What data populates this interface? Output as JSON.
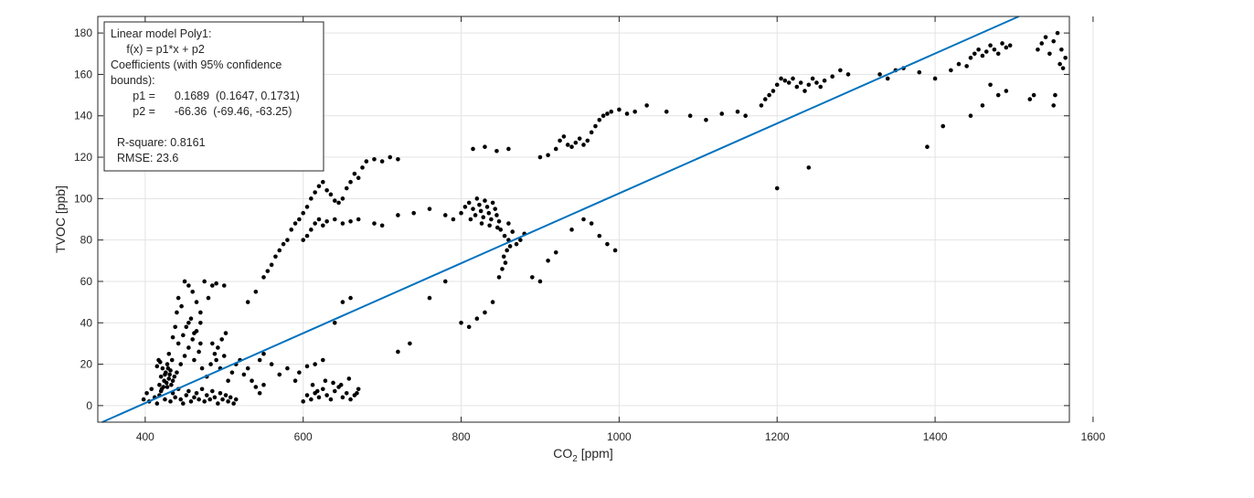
{
  "chart_data": {
    "type": "scatter",
    "xlabel_main": "CO",
    "xlabel_sub": "2",
    "xlabel_unit": " [ppm]",
    "ylabel": "TVOC [ppb]",
    "xlim": [
      340,
      1570
    ],
    "ylim": [
      -8,
      188
    ],
    "xticks": [
      400,
      600,
      800,
      1000,
      1200,
      1400,
      1600
    ],
    "yticks": [
      0,
      20,
      40,
      60,
      80,
      100,
      120,
      140,
      160,
      180
    ],
    "grid": true,
    "fit_line": {
      "slope": 0.1689,
      "intercept": -66.36,
      "color": "#0072BD"
    },
    "marker_color": "#000000",
    "annotation": {
      "lines": [
        "Linear model Poly1:",
        "     f(x) = p1*x + p2",
        "Coefficients (with 95% confidence",
        "bounds):",
        "       p1 =      0.1689  (0.1647, 0.1731)",
        "       p2 =      -66.36  (-69.46, -63.25)",
        "",
        "  R-square: 0.8161",
        "  RMSE: 23.6"
      ]
    },
    "points": [
      [
        398,
        3
      ],
      [
        402,
        6
      ],
      [
        405,
        2
      ],
      [
        408,
        8
      ],
      [
        412,
        4
      ],
      [
        415,
        1
      ],
      [
        418,
        5
      ],
      [
        420,
        7
      ],
      [
        425,
        3
      ],
      [
        428,
        9
      ],
      [
        432,
        2
      ],
      [
        435,
        6
      ],
      [
        438,
        4
      ],
      [
        442,
        8
      ],
      [
        445,
        3
      ],
      [
        448,
        1
      ],
      [
        452,
        5
      ],
      [
        455,
        7
      ],
      [
        458,
        2
      ],
      [
        462,
        4
      ],
      [
        465,
        6
      ],
      [
        468,
        3
      ],
      [
        472,
        8
      ],
      [
        475,
        2
      ],
      [
        478,
        5
      ],
      [
        482,
        3
      ],
      [
        485,
        7
      ],
      [
        488,
        4
      ],
      [
        492,
        1
      ],
      [
        495,
        6
      ],
      [
        498,
        3
      ],
      [
        502,
        5
      ],
      [
        505,
        2
      ],
      [
        508,
        4
      ],
      [
        512,
        1
      ],
      [
        515,
        3
      ],
      [
        418,
        10
      ],
      [
        420,
        14
      ],
      [
        422,
        18
      ],
      [
        424,
        12
      ],
      [
        426,
        16
      ],
      [
        428,
        20
      ],
      [
        430,
        13
      ],
      [
        432,
        17
      ],
      [
        419,
        21
      ],
      [
        423,
        9
      ],
      [
        427,
        11
      ],
      [
        431,
        15
      ],
      [
        415,
        19
      ],
      [
        417,
        22
      ],
      [
        421,
        8
      ],
      [
        425,
        15
      ],
      [
        429,
        18
      ],
      [
        433,
        10
      ],
      [
        435,
        12
      ],
      [
        437,
        14
      ],
      [
        440,
        16
      ],
      [
        445,
        20
      ],
      [
        450,
        24
      ],
      [
        455,
        28
      ],
      [
        460,
        32
      ],
      [
        465,
        36
      ],
      [
        470,
        40
      ],
      [
        442,
        30
      ],
      [
        448,
        34
      ],
      [
        452,
        38
      ],
      [
        458,
        42
      ],
      [
        462,
        22
      ],
      [
        468,
        26
      ],
      [
        472,
        18
      ],
      [
        478,
        14
      ],
      [
        483,
        20
      ],
      [
        488,
        25
      ],
      [
        492,
        28
      ],
      [
        497,
        32
      ],
      [
        502,
        35
      ],
      [
        485,
        30
      ],
      [
        490,
        22
      ],
      [
        495,
        18
      ],
      [
        500,
        24
      ],
      [
        505,
        12
      ],
      [
        510,
        16
      ],
      [
        515,
        20
      ],
      [
        520,
        22
      ],
      [
        525,
        15
      ],
      [
        530,
        18
      ],
      [
        535,
        12
      ],
      [
        540,
        9
      ],
      [
        545,
        6
      ],
      [
        550,
        10
      ],
      [
        450,
        60
      ],
      [
        455,
        58
      ],
      [
        460,
        55
      ],
      [
        465,
        50
      ],
      [
        470,
        45
      ],
      [
        475,
        60
      ],
      [
        480,
        52
      ],
      [
        485,
        58
      ],
      [
        490,
        59
      ],
      [
        500,
        58
      ],
      [
        435,
        33
      ],
      [
        438,
        38
      ],
      [
        440,
        45
      ],
      [
        442,
        52
      ],
      [
        446,
        48
      ],
      [
        430,
        25
      ],
      [
        434,
        22
      ],
      [
        455,
        40
      ],
      [
        462,
        35
      ],
      [
        470,
        30
      ],
      [
        530,
        50
      ],
      [
        540,
        55
      ],
      [
        550,
        62
      ],
      [
        555,
        65
      ],
      [
        560,
        68
      ],
      [
        565,
        72
      ],
      [
        570,
        75
      ],
      [
        575,
        78
      ],
      [
        580,
        80
      ],
      [
        585,
        85
      ],
      [
        590,
        88
      ],
      [
        595,
        90
      ],
      [
        600,
        93
      ],
      [
        605,
        96
      ],
      [
        610,
        100
      ],
      [
        615,
        103
      ],
      [
        620,
        106
      ],
      [
        625,
        108
      ],
      [
        630,
        104
      ],
      [
        635,
        102
      ],
      [
        640,
        99
      ],
      [
        645,
        98
      ],
      [
        650,
        100
      ],
      [
        655,
        105
      ],
      [
        660,
        108
      ],
      [
        665,
        112
      ],
      [
        670,
        110
      ],
      [
        675,
        115
      ],
      [
        680,
        118
      ],
      [
        690,
        119
      ],
      [
        700,
        118
      ],
      [
        710,
        120
      ],
      [
        720,
        119
      ],
      [
        600,
        80
      ],
      [
        605,
        82
      ],
      [
        610,
        85
      ],
      [
        615,
        88
      ],
      [
        620,
        90
      ],
      [
        625,
        87
      ],
      [
        630,
        89
      ],
      [
        640,
        90
      ],
      [
        650,
        88
      ],
      [
        660,
        89
      ],
      [
        670,
        90
      ],
      [
        690,
        88
      ],
      [
        700,
        87
      ],
      [
        600,
        2
      ],
      [
        605,
        5
      ],
      [
        610,
        3
      ],
      [
        615,
        6
      ],
      [
        620,
        4
      ],
      [
        625,
        8
      ],
      [
        630,
        5
      ],
      [
        635,
        3
      ],
      [
        640,
        7
      ],
      [
        645,
        9
      ],
      [
        650,
        4
      ],
      [
        655,
        6
      ],
      [
        660,
        3
      ],
      [
        665,
        5
      ],
      [
        670,
        8
      ],
      [
        612,
        10
      ],
      [
        618,
        7
      ],
      [
        628,
        12
      ],
      [
        638,
        11
      ],
      [
        648,
        10
      ],
      [
        658,
        13
      ],
      [
        668,
        6
      ],
      [
        560,
        20
      ],
      [
        570,
        15
      ],
      [
        580,
        18
      ],
      [
        590,
        12
      ],
      [
        595,
        16
      ],
      [
        605,
        19
      ],
      [
        615,
        20
      ],
      [
        625,
        22
      ],
      [
        640,
        40
      ],
      [
        650,
        50
      ],
      [
        660,
        52
      ],
      [
        550,
        25
      ],
      [
        545,
        22
      ],
      [
        720,
        26
      ],
      [
        735,
        30
      ],
      [
        760,
        52
      ],
      [
        780,
        60
      ],
      [
        800,
        40
      ],
      [
        810,
        38
      ],
      [
        820,
        42
      ],
      [
        830,
        45
      ],
      [
        840,
        50
      ],
      [
        720,
        92
      ],
      [
        740,
        93
      ],
      [
        760,
        95
      ],
      [
        780,
        92
      ],
      [
        790,
        90
      ],
      [
        800,
        93
      ],
      [
        805,
        96
      ],
      [
        810,
        98
      ],
      [
        815,
        95
      ],
      [
        818,
        92
      ],
      [
        820,
        100
      ],
      [
        823,
        97
      ],
      [
        825,
        94
      ],
      [
        828,
        91
      ],
      [
        830,
        99
      ],
      [
        833,
        96
      ],
      [
        835,
        93
      ],
      [
        838,
        90
      ],
      [
        840,
        98
      ],
      [
        843,
        95
      ],
      [
        845,
        92
      ],
      [
        848,
        89
      ],
      [
        812,
        90
      ],
      [
        826,
        88
      ],
      [
        836,
        87
      ],
      [
        846,
        86
      ],
      [
        850,
        85
      ],
      [
        855,
        82
      ],
      [
        860,
        80
      ],
      [
        862,
        77
      ],
      [
        858,
        75
      ],
      [
        854,
        72
      ],
      [
        856,
        69
      ],
      [
        852,
        66
      ],
      [
        848,
        62
      ],
      [
        860,
        88
      ],
      [
        865,
        84
      ],
      [
        870,
        78
      ],
      [
        875,
        80
      ],
      [
        880,
        83
      ],
      [
        890,
        62
      ],
      [
        900,
        60
      ],
      [
        910,
        70
      ],
      [
        920,
        74
      ],
      [
        940,
        85
      ],
      [
        955,
        90
      ],
      [
        965,
        88
      ],
      [
        975,
        82
      ],
      [
        985,
        78
      ],
      [
        995,
        75
      ],
      [
        815,
        124
      ],
      [
        830,
        125
      ],
      [
        845,
        123
      ],
      [
        860,
        124
      ],
      [
        900,
        120
      ],
      [
        910,
        121
      ],
      [
        920,
        124
      ],
      [
        925,
        128
      ],
      [
        930,
        130
      ],
      [
        935,
        126
      ],
      [
        940,
        125
      ],
      [
        945,
        127
      ],
      [
        950,
        129
      ],
      [
        955,
        126
      ],
      [
        960,
        128
      ],
      [
        965,
        132
      ],
      [
        970,
        135
      ],
      [
        975,
        138
      ],
      [
        980,
        140
      ],
      [
        985,
        141
      ],
      [
        990,
        142
      ],
      [
        1000,
        143
      ],
      [
        1010,
        141
      ],
      [
        1020,
        142
      ],
      [
        1035,
        145
      ],
      [
        1060,
        142
      ],
      [
        1090,
        140
      ],
      [
        1110,
        138
      ],
      [
        1130,
        141
      ],
      [
        1150,
        142
      ],
      [
        1160,
        140
      ],
      [
        1180,
        145
      ],
      [
        1185,
        148
      ],
      [
        1190,
        150
      ],
      [
        1195,
        152
      ],
      [
        1200,
        155
      ],
      [
        1205,
        158
      ],
      [
        1210,
        157
      ],
      [
        1215,
        156
      ],
      [
        1220,
        158
      ],
      [
        1225,
        154
      ],
      [
        1230,
        156
      ],
      [
        1235,
        152
      ],
      [
        1240,
        155
      ],
      [
        1245,
        158
      ],
      [
        1250,
        156
      ],
      [
        1255,
        154
      ],
      [
        1260,
        157
      ],
      [
        1270,
        159
      ],
      [
        1280,
        162
      ],
      [
        1290,
        160
      ],
      [
        1200,
        105
      ],
      [
        1240,
        115
      ],
      [
        1330,
        160
      ],
      [
        1340,
        158
      ],
      [
        1350,
        162
      ],
      [
        1360,
        163
      ],
      [
        1380,
        161
      ],
      [
        1390,
        125
      ],
      [
        1400,
        158
      ],
      [
        1410,
        135
      ],
      [
        1420,
        162
      ],
      [
        1430,
        165
      ],
      [
        1440,
        164
      ],
      [
        1445,
        168
      ],
      [
        1450,
        170
      ],
      [
        1455,
        172
      ],
      [
        1460,
        169
      ],
      [
        1465,
        171
      ],
      [
        1470,
        174
      ],
      [
        1475,
        172
      ],
      [
        1480,
        170
      ],
      [
        1485,
        175
      ],
      [
        1490,
        173
      ],
      [
        1495,
        174
      ],
      [
        1445,
        140
      ],
      [
        1460,
        145
      ],
      [
        1470,
        155
      ],
      [
        1480,
        150
      ],
      [
        1490,
        152
      ],
      [
        1520,
        148
      ],
      [
        1525,
        150
      ],
      [
        1530,
        172
      ],
      [
        1535,
        175
      ],
      [
        1540,
        178
      ],
      [
        1545,
        170
      ],
      [
        1550,
        176
      ],
      [
        1555,
        180
      ],
      [
        1560,
        172
      ],
      [
        1565,
        168
      ],
      [
        1550,
        145
      ],
      [
        1552,
        150
      ],
      [
        1558,
        165
      ],
      [
        1562,
        163
      ]
    ]
  }
}
